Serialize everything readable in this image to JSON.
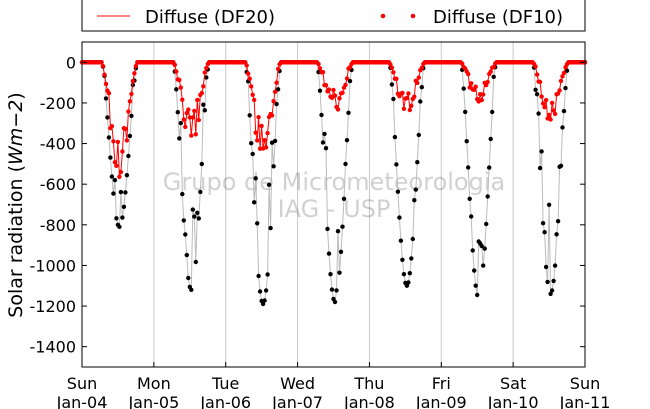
{
  "chart_data": {
    "type": "scatter",
    "ylabel_prefix": "Solar radiation (",
    "ylabel_unit": "Wm−2",
    "ylabel_suffix": ")",
    "ylim": [
      -1500,
      100
    ],
    "yticks": [
      0,
      -200,
      -400,
      -600,
      -800,
      -1000,
      -1200,
      -1400
    ],
    "xlim": [
      "Jan-04",
      "Jan-11"
    ],
    "xticks": [
      {
        "day": "Sun",
        "date": "Jan-04"
      },
      {
        "day": "Mon",
        "date": "Jan-05"
      },
      {
        "day": "Tue",
        "date": "Jan-06"
      },
      {
        "day": "Wed",
        "date": "Jan-07"
      },
      {
        "day": "Thu",
        "date": "Jan-08"
      },
      {
        "day": "Fri",
        "date": "Jan-09"
      },
      {
        "day": "Sat",
        "date": "Jan-10"
      },
      {
        "day": "Sun",
        "date": "Jan-11"
      }
    ],
    "grid": "vertical",
    "legend_placement": "top, above plot",
    "series": [
      {
        "name": "Diffuse (DF20)",
        "style": "line",
        "color": "#ff0000",
        "marker": "none"
      },
      {
        "name": "Diffuse (DF10)",
        "style": "markers",
        "color": "#ff0000",
        "marker": "dot"
      }
    ],
    "unlabeled_series": {
      "style": "line+markers",
      "line_color": "#bbbbbb",
      "marker_color": "#000000",
      "daily_minimum_approx": [
        -810,
        -1120,
        -1190,
        -1180,
        -1100,
        -1160,
        -1140
      ]
    },
    "diffuse_daily_minimum_approx": [
      -580,
      -420,
      -500,
      -250,
      -280,
      -220,
      -310
    ],
    "watermark_line1": "Grupo de Micrometeorologia",
    "watermark_line2": "IAG - USP"
  }
}
